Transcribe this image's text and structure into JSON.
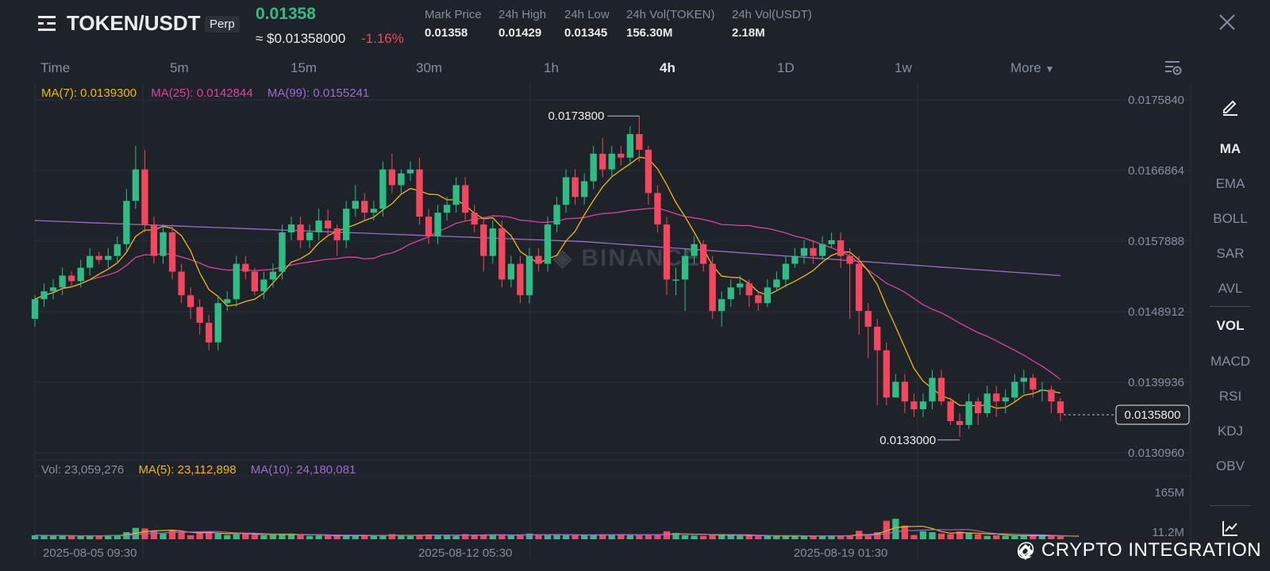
{
  "header": {
    "symbol": "TOKEN/USDT",
    "contract_badge": "Perp",
    "last_price": "0.01358",
    "usd_price": "≈ $0.01358000",
    "change_pct": "-1.16%",
    "stats": [
      {
        "label": "Mark Price",
        "value": "0.01358"
      },
      {
        "label": "24h High",
        "value": "0.01429"
      },
      {
        "label": "24h Low",
        "value": "0.01345"
      },
      {
        "label": "24h Vol(TOKEN)",
        "value": "156.30M"
      },
      {
        "label": "24h Vol(USDT)",
        "value": "2.18M"
      }
    ]
  },
  "intervals": {
    "items": [
      "Time",
      "5m",
      "15m",
      "30m",
      "1h",
      "4h",
      "1D",
      "1w",
      "More"
    ],
    "active": "4h"
  },
  "legend": {
    "ma7": "MA(7): 0.0139300",
    "ma25": "MA(25): 0.0142844",
    "ma99": "MA(99): 0.0155241"
  },
  "volume_legend": {
    "vol": "Vol: 23,059,276",
    "ma5": "MA(5): 23,112,898",
    "ma10": "MA(10): 24,180,081"
  },
  "sidebar": {
    "groups": [
      [
        "MA",
        "EMA",
        "BOLL",
        "SAR",
        "AVL"
      ],
      [
        "VOL",
        "MACD",
        "RSI",
        "KDJ",
        "OBV"
      ]
    ],
    "active": [
      "MA",
      "VOL"
    ]
  },
  "watermark": "@ CRYPTO INTEGRATION",
  "colors": {
    "background": "#1e2329",
    "up": "#2ebd85",
    "down": "#f6465d",
    "ma7": "#f0b90b",
    "ma25": "#e040a0",
    "ma99": "#9c6ad0",
    "text_muted": "#848e9c"
  },
  "chart_data": {
    "type": "candlestick",
    "price_axis_ticks": [
      "0.0175840",
      "0.0166864",
      "0.0157888",
      "0.0148912",
      "0.0139936",
      "0.0130960"
    ],
    "price_range": [
      0.013096,
      0.017584
    ],
    "current_price_label": "0.0135800",
    "high_marker": "0.0173800",
    "low_marker": "0.0133000",
    "time_ticks": [
      {
        "label": "2025-08-05 09:30",
        "index": 6
      },
      {
        "label": "2025-08-12 05:30",
        "index": 47
      },
      {
        "label": "2025-08-19 01:30",
        "index": 88
      }
    ],
    "volume_axis_ticks": [
      "165M",
      "11.2M"
    ],
    "volume_range_M": [
      0,
      195
    ],
    "closes": [
      0.01505,
      0.01515,
      0.0152,
      0.01535,
      0.01528,
      0.01545,
      0.0156,
      0.01555,
      0.0156,
      0.01575,
      0.0163,
      0.0167,
      0.016,
      0.0156,
      0.0159,
      0.0154,
      0.0151,
      0.01495,
      0.01475,
      0.0145,
      0.015,
      0.01505,
      0.0155,
      0.0154,
      0.01515,
      0.0153,
      0.0154,
      0.0159,
      0.016,
      0.0158,
      0.0159,
      0.01605,
      0.01595,
      0.0158,
      0.0162,
      0.0163,
      0.01615,
      0.0162,
      0.0167,
      0.0165,
      0.01665,
      0.0167,
      0.0161,
      0.01585,
      0.01615,
      0.01625,
      0.0165,
      0.01615,
      0.016,
      0.0156,
      0.01595,
      0.0153,
      0.0155,
      0.0151,
      0.0156,
      0.0155,
      0.016,
      0.01625,
      0.0166,
      0.01635,
      0.01655,
      0.0169,
      0.0167,
      0.0169,
      0.01685,
      0.01715,
      0.01695,
      0.0164,
      0.016,
      0.0153,
      0.0153,
      0.0156,
      0.01575,
      0.0155,
      0.0149,
      0.01505,
      0.0152,
      0.01525,
      0.0151,
      0.015,
      0.0152,
      0.0153,
      0.0155,
      0.0156,
      0.0157,
      0.0156,
      0.01575,
      0.0158,
      0.0156,
      0.0155,
      0.0149,
      0.0147,
      0.0144,
      0.0138,
      0.014,
      0.01375,
      0.01365,
      0.01375,
      0.01405,
      0.01375,
      0.0135,
      0.01345,
      0.01375,
      0.0136,
      0.01385,
      0.01375,
      0.0138,
      0.014,
      0.01405,
      0.0139,
      0.0139,
      0.01375,
      0.0136
    ],
    "opens": [
      0.0148,
      0.01505,
      0.01515,
      0.0152,
      0.01535,
      0.01528,
      0.01545,
      0.0156,
      0.01555,
      0.0156,
      0.01575,
      0.0163,
      0.0167,
      0.016,
      0.0156,
      0.0159,
      0.0154,
      0.0151,
      0.01495,
      0.01475,
      0.0145,
      0.015,
      0.01505,
      0.0155,
      0.0154,
      0.01515,
      0.0153,
      0.0154,
      0.0159,
      0.016,
      0.0158,
      0.0159,
      0.01605,
      0.01595,
      0.0158,
      0.0162,
      0.0163,
      0.01615,
      0.0162,
      0.0167,
      0.0165,
      0.01665,
      0.0167,
      0.0161,
      0.01585,
      0.01615,
      0.01625,
      0.0165,
      0.01615,
      0.016,
      0.0156,
      0.01595,
      0.0153,
      0.0155,
      0.0151,
      0.0156,
      0.0155,
      0.016,
      0.01625,
      0.0166,
      0.01635,
      0.01655,
      0.0169,
      0.0167,
      0.0169,
      0.01685,
      0.01715,
      0.01695,
      0.0164,
      0.016,
      0.0153,
      0.0153,
      0.0156,
      0.01575,
      0.0155,
      0.0149,
      0.01505,
      0.0152,
      0.01525,
      0.0151,
      0.015,
      0.0152,
      0.0153,
      0.0155,
      0.0156,
      0.0157,
      0.0156,
      0.01575,
      0.0158,
      0.0156,
      0.0155,
      0.0149,
      0.0147,
      0.0144,
      0.0138,
      0.014,
      0.01375,
      0.01365,
      0.01375,
      0.01405,
      0.01375,
      0.0135,
      0.01345,
      0.01375,
      0.0136,
      0.01385,
      0.01375,
      0.0138,
      0.014,
      0.01405,
      0.0139,
      0.0139,
      0.01375
    ],
    "highs": [
      0.0151,
      0.01525,
      0.0153,
      0.01545,
      0.0154,
      0.01555,
      0.0157,
      0.01565,
      0.0157,
      0.01585,
      0.01645,
      0.017,
      0.01695,
      0.0161,
      0.016,
      0.016,
      0.0155,
      0.0152,
      0.01505,
      0.01485,
      0.0151,
      0.01515,
      0.0156,
      0.0156,
      0.01545,
      0.0154,
      0.0155,
      0.016,
      0.0161,
      0.0161,
      0.016,
      0.0162,
      0.0162,
      0.016,
      0.0163,
      0.0165,
      0.0164,
      0.0163,
      0.0168,
      0.0169,
      0.0167,
      0.0168,
      0.01685,
      0.0162,
      0.01625,
      0.01635,
      0.0166,
      0.0166,
      0.01625,
      0.0161,
      0.01605,
      0.01605,
      0.0156,
      0.0156,
      0.0157,
      0.0157,
      0.0161,
      0.01635,
      0.0167,
      0.0167,
      0.01665,
      0.017,
      0.0171,
      0.017,
      0.017,
      0.01725,
      0.01738,
      0.017,
      0.0165,
      0.0161,
      0.01545,
      0.0157,
      0.01585,
      0.0158,
      0.0156,
      0.01515,
      0.0153,
      0.01535,
      0.0153,
      0.01515,
      0.0153,
      0.0154,
      0.0156,
      0.0157,
      0.0158,
      0.0158,
      0.01585,
      0.0159,
      0.0159,
      0.0157,
      0.0156,
      0.015,
      0.0148,
      0.0145,
      0.0141,
      0.0141,
      0.01385,
      0.01385,
      0.01415,
      0.01415,
      0.0138,
      0.0136,
      0.01385,
      0.0138,
      0.01395,
      0.01395,
      0.0139,
      0.0141,
      0.01415,
      0.0141,
      0.014,
      0.01395,
      0.0138
    ],
    "lows": [
      0.0147,
      0.01495,
      0.01505,
      0.0151,
      0.0152,
      0.0152,
      0.01535,
      0.0155,
      0.01545,
      0.0155,
      0.01565,
      0.0162,
      0.0159,
      0.0155,
      0.0155,
      0.0153,
      0.015,
      0.0148,
      0.0146,
      0.0144,
      0.0144,
      0.0149,
      0.01495,
      0.0153,
      0.0151,
      0.01505,
      0.0152,
      0.0153,
      0.0158,
      0.0157,
      0.0157,
      0.0158,
      0.01585,
      0.0156,
      0.0157,
      0.0161,
      0.01605,
      0.01605,
      0.0161,
      0.0164,
      0.0164,
      0.01655,
      0.016,
      0.01575,
      0.01575,
      0.01605,
      0.01615,
      0.01605,
      0.0159,
      0.0154,
      0.0155,
      0.0152,
      0.0152,
      0.015,
      0.015,
      0.0154,
      0.0154,
      0.0159,
      0.01615,
      0.01625,
      0.01625,
      0.01645,
      0.0166,
      0.0166,
      0.01675,
      0.01675,
      0.0168,
      0.01625,
      0.0159,
      0.0151,
      0.0151,
      0.0149,
      0.0155,
      0.0154,
      0.0148,
      0.0147,
      0.01495,
      0.0151,
      0.01495,
      0.0149,
      0.01495,
      0.01515,
      0.0152,
      0.01545,
      0.0155,
      0.0155,
      0.01555,
      0.0157,
      0.01545,
      0.0148,
      0.0146,
      0.0143,
      0.0137,
      0.0137,
      0.0138,
      0.0136,
      0.01355,
      0.01355,
      0.01365,
      0.0137,
      0.01345,
      0.0133,
      0.0134,
      0.01345,
      0.01355,
      0.01355,
      0.0136,
      0.01375,
      0.01385,
      0.0138,
      0.01375,
      0.0136,
      0.0135
    ],
    "volumes_M": [
      14,
      13,
      12,
      12,
      11,
      12,
      13,
      12,
      14,
      15,
      25,
      40,
      38,
      30,
      20,
      32,
      25,
      14,
      22,
      28,
      20,
      15,
      18,
      22,
      16,
      14,
      15,
      18,
      20,
      14,
      12,
      13,
      12,
      14,
      13,
      12,
      13,
      12,
      15,
      18,
      13,
      12,
      15,
      17,
      14,
      13,
      12,
      18,
      15,
      17,
      16,
      14,
      13,
      16,
      20,
      15,
      16,
      15,
      14,
      17,
      14,
      15,
      16,
      15,
      18,
      15,
      16,
      15,
      14,
      28,
      22,
      14,
      13,
      12,
      18,
      15,
      14,
      12,
      13,
      11,
      12,
      11,
      12,
      11,
      12,
      11,
      12,
      13,
      12,
      14,
      30,
      12,
      25,
      65,
      72,
      48,
      15,
      28,
      25,
      20,
      18,
      27,
      22,
      17,
      12,
      14,
      12,
      11,
      13,
      15,
      12,
      11,
      10,
      10,
      9
    ]
  }
}
